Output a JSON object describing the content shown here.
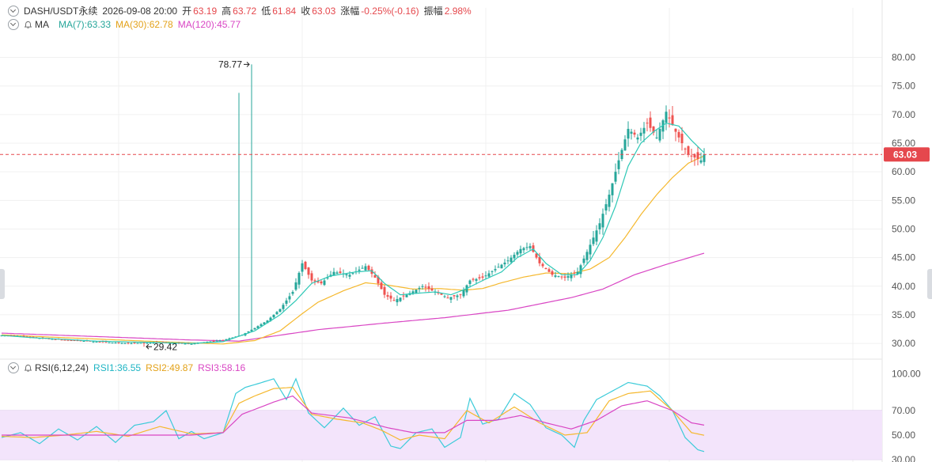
{
  "colors": {
    "up": "#26a69a",
    "down": "#ef5350",
    "ma7": "#2ec8b6",
    "ma30": "#f5b82e",
    "ma120": "#d946c4",
    "rsi1": "#3ccbd9",
    "rsi2": "#f5b82e",
    "rsi3": "#d946c4",
    "last_price_bg": "#e5484d",
    "rsi_band": "#f3e4fb",
    "grid": "#f0f0f0",
    "axis_text": "#555555"
  },
  "header": {
    "symbol": "DASH/USDT永续",
    "datetime": "2026-09-08 20:00",
    "open_label": "开",
    "open": "63.19",
    "high_label": "高",
    "high": "63.72",
    "low_label": "低",
    "low": "61.84",
    "close_label": "收",
    "close": "63.03",
    "change_label": "涨幅",
    "change": "-0.25%(-0.16)",
    "amp_label": "振幅",
    "amp": "2.98%"
  },
  "ma_legend": {
    "name": "MA",
    "ma7": "MA(7):63.33",
    "ma30": "MA(30):62.78",
    "ma120": "MA(120):45.77"
  },
  "rsi_legend": {
    "name": "RSI(6,12,24)",
    "rsi1": "RSI1:36.55",
    "rsi2": "RSI2:49.87",
    "rsi3": "RSI3:58.16"
  },
  "chart_data": [
    {
      "type": "candlestick",
      "title": "DASH/USDT永续",
      "y_ticks": [
        "80.00",
        "75.00",
        "70.00",
        "65.00",
        "60.00",
        "55.00",
        "50.00",
        "45.00",
        "40.00",
        "35.00",
        "30.00"
      ],
      "ylim": [
        27.8,
        84.5
      ],
      "last_price": "63.03",
      "max_label": "78.77",
      "min_label": "29.42",
      "close_anchors": [
        [
          0,
          31.4
        ],
        [
          5,
          31.3
        ],
        [
          10,
          31.0
        ],
        [
          20,
          30.6
        ],
        [
          30,
          30.3
        ],
        [
          40,
          30.0
        ],
        [
          50,
          30.2
        ],
        [
          60,
          29.9
        ],
        [
          65,
          30.3
        ],
        [
          70,
          30.6
        ],
        [
          76,
          31.5
        ],
        [
          80,
          32.7
        ],
        [
          84,
          34.0
        ],
        [
          88,
          36.0
        ],
        [
          92,
          39.0
        ],
        [
          95,
          44.0
        ],
        [
          98,
          41.0
        ],
        [
          101,
          40.5
        ],
        [
          105,
          42.5
        ],
        [
          110,
          42.0
        ],
        [
          115,
          43.5
        ],
        [
          118,
          41.5
        ],
        [
          121,
          38.5
        ],
        [
          124,
          37.5
        ],
        [
          128,
          38.5
        ],
        [
          133,
          40.0
        ],
        [
          137,
          39.0
        ],
        [
          141,
          38.0
        ],
        [
          145,
          38.5
        ],
        [
          148,
          41.0
        ],
        [
          152,
          41.5
        ],
        [
          156,
          43.0
        ],
        [
          160,
          44.5
        ],
        [
          164,
          46.5
        ],
        [
          167,
          47.0
        ],
        [
          170,
          44.0
        ],
        [
          174,
          42.0
        ],
        [
          178,
          41.5
        ],
        [
          182,
          42.5
        ],
        [
          185,
          46.0
        ],
        [
          189,
          51.0
        ],
        [
          192,
          56.0
        ],
        [
          195,
          62.0
        ],
        [
          198,
          67.5
        ],
        [
          201,
          66.0
        ],
        [
          204,
          68.5
        ],
        [
          207,
          66.0
        ],
        [
          210,
          70.5
        ],
        [
          213,
          67.0
        ],
        [
          215,
          65.0
        ],
        [
          217,
          63.0
        ],
        [
          219,
          62.5
        ],
        [
          221,
          62.0
        ],
        [
          222,
          63.03
        ]
      ],
      "ma7_anchors": [
        [
          0,
          31.4
        ],
        [
          10,
          31.0
        ],
        [
          30,
          30.4
        ],
        [
          60,
          30.0
        ],
        [
          70,
          30.3
        ],
        [
          80,
          32.2
        ],
        [
          88,
          35.0
        ],
        [
          93,
          37.5
        ],
        [
          98,
          40.5
        ],
        [
          104,
          41.8
        ],
        [
          112,
          42.5
        ],
        [
          117,
          42.7
        ],
        [
          121,
          40.5
        ],
        [
          126,
          38.5
        ],
        [
          132,
          38.8
        ],
        [
          137,
          39.0
        ],
        [
          142,
          38.5
        ],
        [
          147,
          39.6
        ],
        [
          152,
          41.0
        ],
        [
          158,
          42.5
        ],
        [
          163,
          45.0
        ],
        [
          168,
          46.5
        ],
        [
          172,
          44.0
        ],
        [
          177,
          42.0
        ],
        [
          182,
          42.0
        ],
        [
          186,
          44.5
        ],
        [
          190,
          48.5
        ],
        [
          194,
          54.0
        ],
        [
          198,
          61.0
        ],
        [
          202,
          65.0
        ],
        [
          206,
          67.0
        ],
        [
          210,
          68.5
        ],
        [
          214,
          68.0
        ],
        [
          218,
          65.5
        ],
        [
          222,
          63.33
        ]
      ],
      "ma30_anchors": [
        [
          0,
          31.5
        ],
        [
          20,
          31.0
        ],
        [
          50,
          30.3
        ],
        [
          70,
          29.9
        ],
        [
          80,
          30.5
        ],
        [
          88,
          32.2
        ],
        [
          95,
          35.2
        ],
        [
          100,
          37.2
        ],
        [
          108,
          39.2
        ],
        [
          115,
          40.6
        ],
        [
          122,
          40.2
        ],
        [
          130,
          39.5
        ],
        [
          138,
          39.6
        ],
        [
          146,
          39.3
        ],
        [
          152,
          39.6
        ],
        [
          158,
          40.6
        ],
        [
          165,
          41.6
        ],
        [
          172,
          42.3
        ],
        [
          180,
          42.2
        ],
        [
          186,
          43.0
        ],
        [
          192,
          45.0
        ],
        [
          197,
          48.5
        ],
        [
          202,
          52.5
        ],
        [
          207,
          56.0
        ],
        [
          212,
          59.0
        ],
        [
          217,
          61.5
        ],
        [
          222,
          62.78
        ]
      ],
      "ma120_anchors": [
        [
          0,
          31.8
        ],
        [
          30,
          31.2
        ],
        [
          60,
          30.6
        ],
        [
          75,
          30.4
        ],
        [
          85,
          31.2
        ],
        [
          100,
          32.4
        ],
        [
          120,
          33.5
        ],
        [
          140,
          34.5
        ],
        [
          160,
          35.8
        ],
        [
          180,
          38.0
        ],
        [
          190,
          39.5
        ],
        [
          200,
          42.0
        ],
        [
          210,
          43.8
        ],
        [
          222,
          45.77
        ]
      ],
      "high_spikes": [
        [
          79,
          78.77
        ],
        [
          75,
          73.8
        ]
      ],
      "low_spike": [
        [
          45,
          29.42
        ]
      ]
    },
    {
      "type": "line",
      "title": "RSI(6,12,24)",
      "y_ticks": [
        "100.00",
        "70.00",
        "50.00",
        "30.00"
      ],
      "ylim": [
        28,
        103
      ],
      "band": [
        30,
        70
      ],
      "series": [
        {
          "name": "RSI1",
          "anchors": [
            [
              0,
              48
            ],
            [
              6,
              52
            ],
            [
              12,
              43
            ],
            [
              18,
              55
            ],
            [
              24,
              46
            ],
            [
              30,
              57
            ],
            [
              36,
              44
            ],
            [
              42,
              58
            ],
            [
              48,
              61
            ],
            [
              52,
              70
            ],
            [
              56,
              47
            ],
            [
              60,
              53
            ],
            [
              64,
              47
            ],
            [
              70,
              52
            ],
            [
              74,
              84
            ],
            [
              77,
              89
            ],
            [
              81,
              92
            ],
            [
              86,
              96
            ],
            [
              90,
              79
            ],
            [
              93,
              96
            ],
            [
              97,
              68
            ],
            [
              102,
              56
            ],
            [
              108,
              72
            ],
            [
              113,
              58
            ],
            [
              118,
              65
            ],
            [
              123,
              41
            ],
            [
              126,
              39
            ],
            [
              131,
              52
            ],
            [
              136,
              55
            ],
            [
              140,
              40
            ],
            [
              145,
              48
            ],
            [
              148,
              80
            ],
            [
              152,
              59
            ],
            [
              157,
              63
            ],
            [
              162,
              84
            ],
            [
              167,
              75
            ],
            [
              172,
              56
            ],
            [
              177,
              50
            ],
            [
              181,
              40
            ],
            [
              184,
              62
            ],
            [
              188,
              79
            ],
            [
              193,
              86
            ],
            [
              198,
              93
            ],
            [
              204,
              90
            ],
            [
              208,
              82
            ],
            [
              212,
              70
            ],
            [
              216,
              48
            ],
            [
              220,
              38
            ],
            [
              222,
              36.55
            ]
          ]
        },
        {
          "name": "RSI2",
          "anchors": [
            [
              0,
              49
            ],
            [
              10,
              48
            ],
            [
              20,
              50
            ],
            [
              30,
              53
            ],
            [
              40,
              49
            ],
            [
              50,
              57
            ],
            [
              60,
              51
            ],
            [
              70,
              52
            ],
            [
              75,
              76
            ],
            [
              80,
              82
            ],
            [
              86,
              88
            ],
            [
              92,
              89
            ],
            [
              98,
              67
            ],
            [
              106,
              63
            ],
            [
              114,
              60
            ],
            [
              120,
              54
            ],
            [
              126,
              46
            ],
            [
              132,
              50
            ],
            [
              140,
              47
            ],
            [
              147,
              70
            ],
            [
              154,
              60
            ],
            [
              162,
              73
            ],
            [
              170,
              60
            ],
            [
              178,
              50
            ],
            [
              185,
              52
            ],
            [
              192,
              78
            ],
            [
              198,
              84
            ],
            [
              205,
              86
            ],
            [
              212,
              70
            ],
            [
              218,
              52
            ],
            [
              222,
              49.87
            ]
          ]
        },
        {
          "name": "RSI3",
          "anchors": [
            [
              0,
              50
            ],
            [
              20,
              50
            ],
            [
              40,
              50
            ],
            [
              60,
              50
            ],
            [
              70,
              52
            ],
            [
              76,
              67
            ],
            [
              86,
              77
            ],
            [
              92,
              82
            ],
            [
              98,
              68
            ],
            [
              110,
              64
            ],
            [
              122,
              56
            ],
            [
              130,
              52
            ],
            [
              140,
              52
            ],
            [
              147,
              62
            ],
            [
              156,
              62
            ],
            [
              164,
              66
            ],
            [
              172,
              60
            ],
            [
              180,
              55
            ],
            [
              188,
              62
            ],
            [
              196,
              74
            ],
            [
              204,
              78
            ],
            [
              212,
              70
            ],
            [
              218,
              60
            ],
            [
              222,
              58.16
            ]
          ]
        }
      ]
    }
  ]
}
